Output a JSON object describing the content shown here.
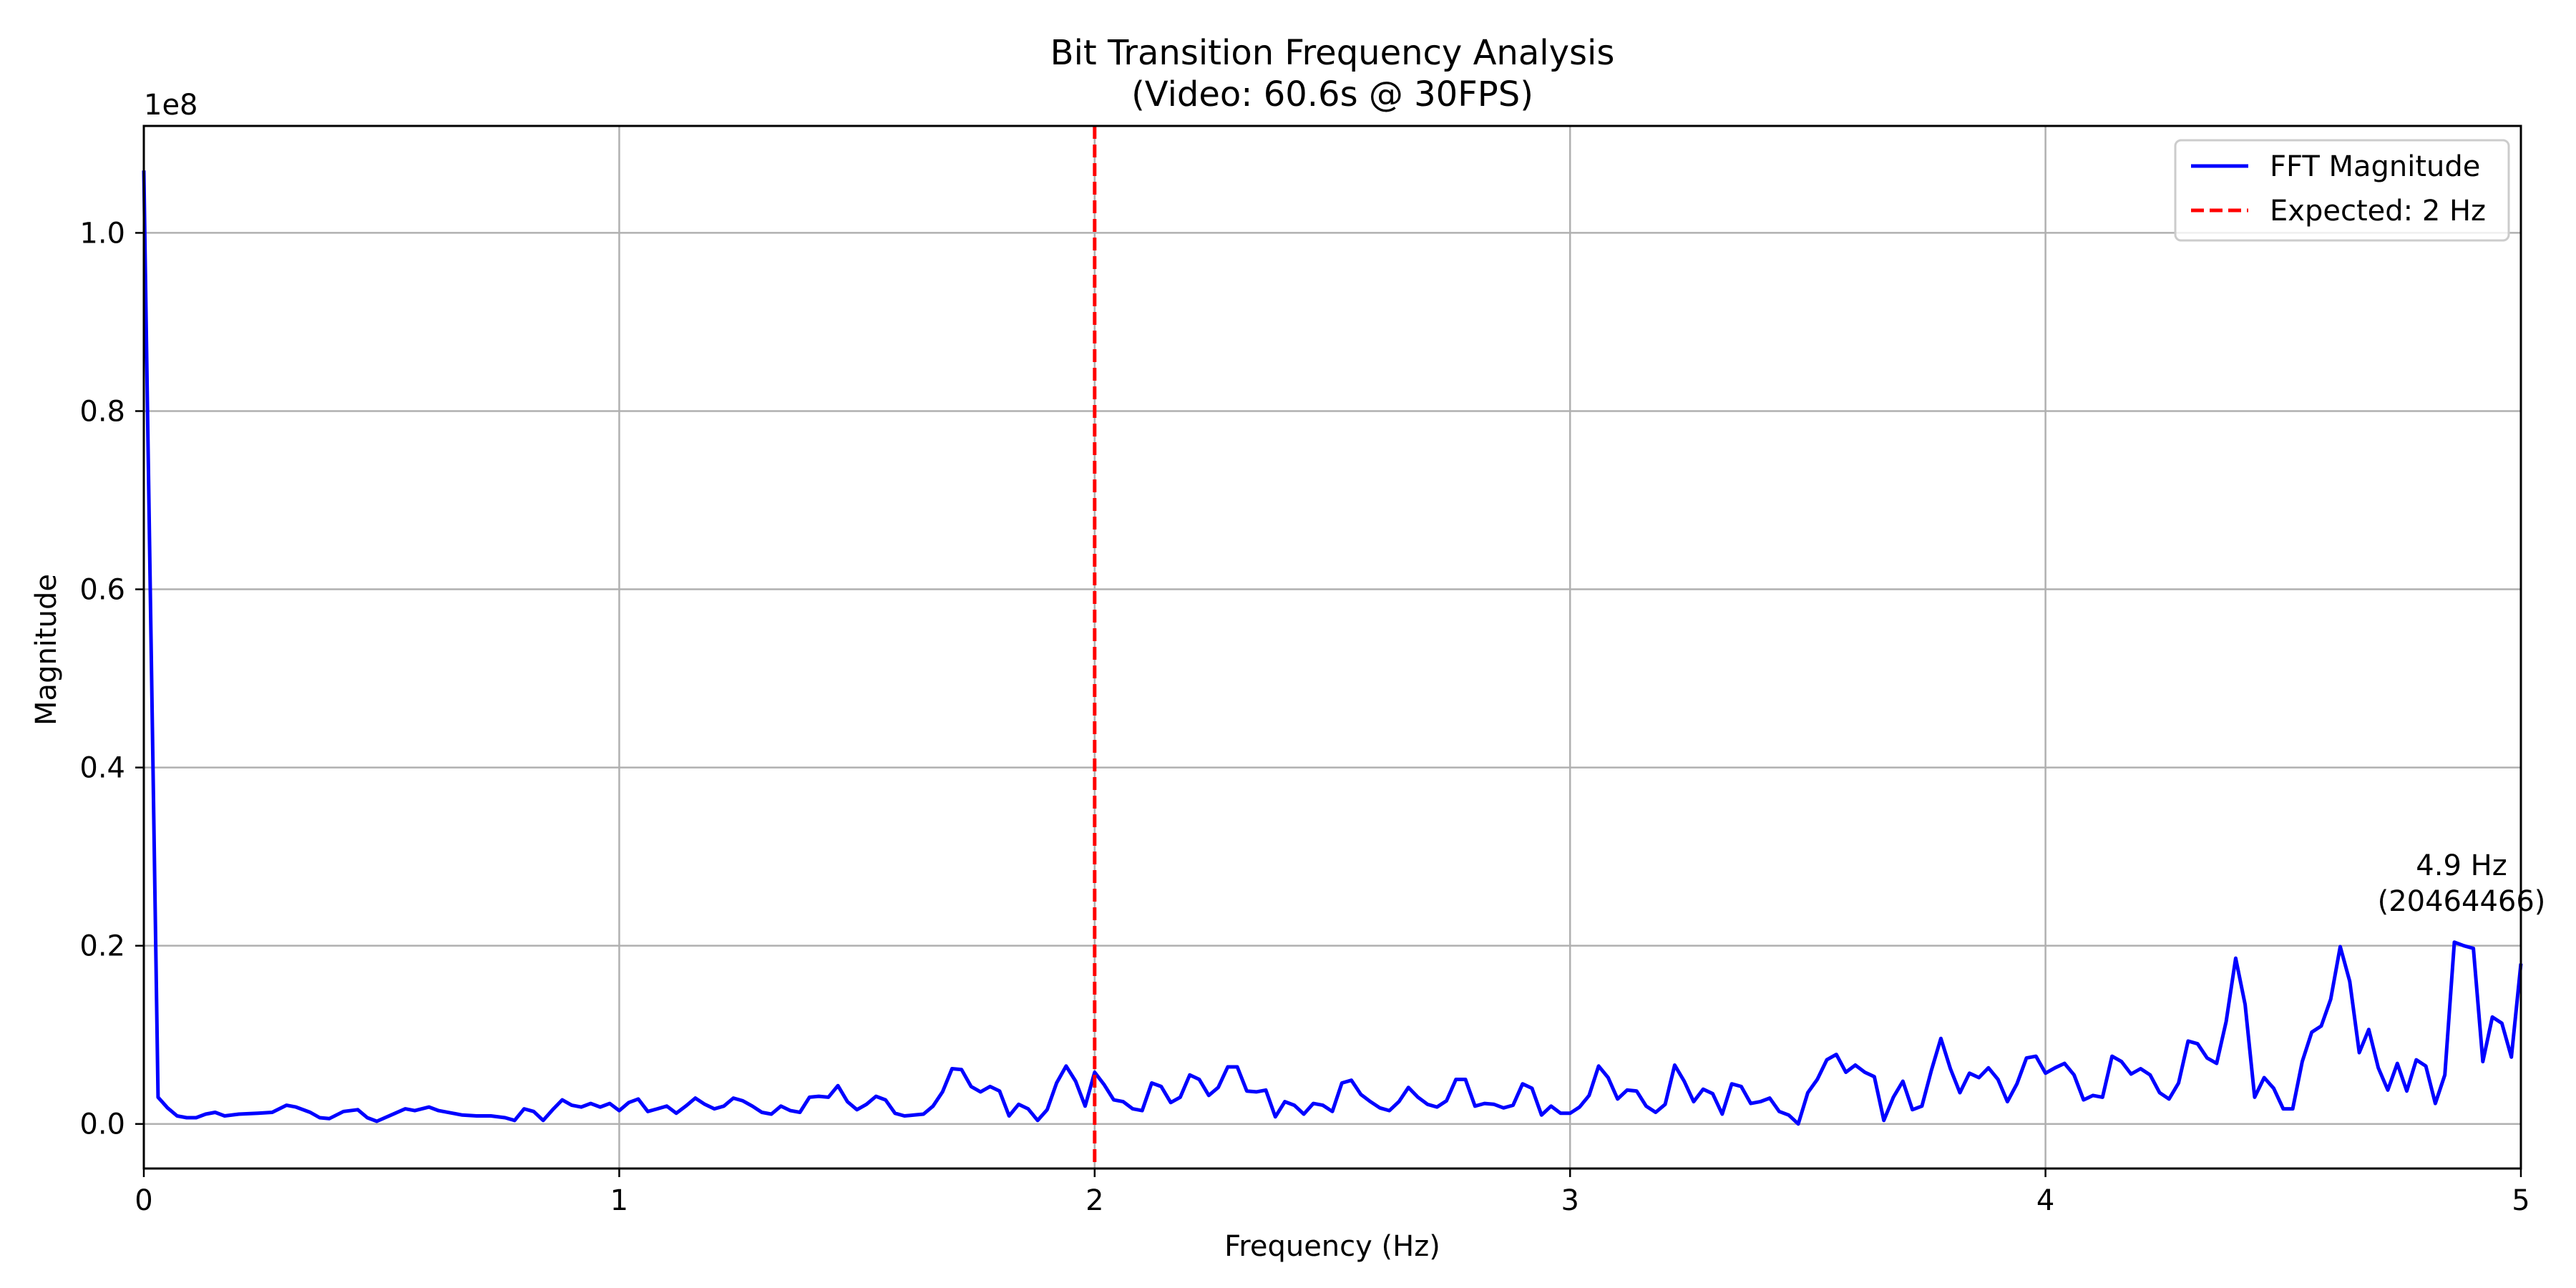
{
  "chart_data": {
    "type": "line",
    "title": [
      "Bit Transition Frequency Analysis",
      "(Video: 60.6s @ 30FPS)"
    ],
    "xlabel": "Frequency (Hz)",
    "ylabel": "Magnitude",
    "offset_text": "1e8",
    "xlim": [
      0,
      5
    ],
    "ylim": [
      -0.05,
      1.12
    ],
    "grid": true,
    "legend_position": "top-right",
    "x_ticks": [
      {
        "value": 0,
        "label": "0"
      },
      {
        "value": 1,
        "label": "1"
      },
      {
        "value": 2,
        "label": "2"
      },
      {
        "value": 3,
        "label": "3"
      },
      {
        "value": 4,
        "label": "4"
      },
      {
        "value": 5,
        "label": "5"
      }
    ],
    "y_ticks": [
      {
        "value": 0.0,
        "label": "0.0"
      },
      {
        "value": 0.2,
        "label": "0.2"
      },
      {
        "value": 0.4,
        "label": "0.4"
      },
      {
        "value": 0.6,
        "label": "0.6"
      },
      {
        "value": 0.8,
        "label": "0.8"
      },
      {
        "value": 1.0,
        "label": "1.0"
      }
    ],
    "series": [
      {
        "name": "FFT Magnitude",
        "color": "#0000ff",
        "style": "solid",
        "points": [
          [
            0.0,
            1.07
          ],
          [
            0.03,
            0.03
          ],
          [
            0.05,
            0.018
          ],
          [
            0.07,
            0.009
          ],
          [
            0.09,
            0.007
          ],
          [
            0.11,
            0.007
          ],
          [
            0.13,
            0.011
          ],
          [
            0.15,
            0.013
          ],
          [
            0.17,
            0.009
          ],
          [
            0.2,
            0.011
          ],
          [
            0.24,
            0.012
          ],
          [
            0.27,
            0.013
          ],
          [
            0.3,
            0.021
          ],
          [
            0.32,
            0.019
          ],
          [
            0.35,
            0.013
          ],
          [
            0.37,
            0.007
          ],
          [
            0.39,
            0.006
          ],
          [
            0.42,
            0.014
          ],
          [
            0.45,
            0.016
          ],
          [
            0.47,
            0.007
          ],
          [
            0.49,
            0.003
          ],
          [
            0.52,
            0.01
          ],
          [
            0.55,
            0.017
          ],
          [
            0.57,
            0.015
          ],
          [
            0.6,
            0.019
          ],
          [
            0.62,
            0.015
          ],
          [
            0.65,
            0.012
          ],
          [
            0.67,
            0.01
          ],
          [
            0.7,
            0.009
          ],
          [
            0.73,
            0.009
          ],
          [
            0.76,
            0.007
          ],
          [
            0.78,
            0.004
          ],
          [
            0.8,
            0.017
          ],
          [
            0.82,
            0.014
          ],
          [
            0.84,
            0.004
          ],
          [
            0.86,
            0.016
          ],
          [
            0.88,
            0.027
          ],
          [
            0.9,
            0.021
          ],
          [
            0.92,
            0.019
          ],
          [
            0.94,
            0.023
          ],
          [
            0.96,
            0.019
          ],
          [
            0.98,
            0.023
          ],
          [
            1.0,
            0.015
          ],
          [
            1.02,
            0.024
          ],
          [
            1.04,
            0.028
          ],
          [
            1.06,
            0.014
          ],
          [
            1.08,
            0.017
          ],
          [
            1.1,
            0.02
          ],
          [
            1.12,
            0.012
          ],
          [
            1.14,
            0.02
          ],
          [
            1.16,
            0.029
          ],
          [
            1.18,
            0.022
          ],
          [
            1.2,
            0.017
          ],
          [
            1.22,
            0.02
          ],
          [
            1.24,
            0.029
          ],
          [
            1.26,
            0.026
          ],
          [
            1.28,
            0.02
          ],
          [
            1.3,
            0.013
          ],
          [
            1.32,
            0.011
          ],
          [
            1.34,
            0.02
          ],
          [
            1.36,
            0.015
          ],
          [
            1.38,
            0.013
          ],
          [
            1.4,
            0.03
          ],
          [
            1.42,
            0.031
          ],
          [
            1.44,
            0.03
          ],
          [
            1.46,
            0.043
          ],
          [
            1.48,
            0.025
          ],
          [
            1.5,
            0.016
          ],
          [
            1.52,
            0.022
          ],
          [
            1.54,
            0.031
          ],
          [
            1.56,
            0.027
          ],
          [
            1.58,
            0.012
          ],
          [
            1.6,
            0.009
          ],
          [
            1.62,
            0.01
          ],
          [
            1.64,
            0.011
          ],
          [
            1.66,
            0.02
          ],
          [
            1.68,
            0.036
          ],
          [
            1.7,
            0.062
          ],
          [
            1.72,
            0.061
          ],
          [
            1.74,
            0.042
          ],
          [
            1.76,
            0.036
          ],
          [
            1.78,
            0.042
          ],
          [
            1.8,
            0.037
          ],
          [
            1.82,
            0.009
          ],
          [
            1.84,
            0.022
          ],
          [
            1.86,
            0.017
          ],
          [
            1.88,
            0.004
          ],
          [
            1.9,
            0.016
          ],
          [
            1.92,
            0.046
          ],
          [
            1.94,
            0.065
          ],
          [
            1.96,
            0.048
          ],
          [
            1.98,
            0.02
          ],
          [
            2.0,
            0.058
          ],
          [
            2.02,
            0.044
          ],
          [
            2.04,
            0.027
          ],
          [
            2.06,
            0.025
          ],
          [
            2.08,
            0.017
          ],
          [
            2.1,
            0.015
          ],
          [
            2.12,
            0.046
          ],
          [
            2.14,
            0.042
          ],
          [
            2.16,
            0.024
          ],
          [
            2.18,
            0.03
          ],
          [
            2.2,
            0.055
          ],
          [
            2.22,
            0.05
          ],
          [
            2.24,
            0.032
          ],
          [
            2.26,
            0.041
          ],
          [
            2.28,
            0.064
          ],
          [
            2.3,
            0.064
          ],
          [
            2.32,
            0.037
          ],
          [
            2.34,
            0.036
          ],
          [
            2.36,
            0.038
          ],
          [
            2.38,
            0.008
          ],
          [
            2.4,
            0.025
          ],
          [
            2.42,
            0.021
          ],
          [
            2.44,
            0.011
          ],
          [
            2.46,
            0.023
          ],
          [
            2.48,
            0.021
          ],
          [
            2.5,
            0.014
          ],
          [
            2.52,
            0.046
          ],
          [
            2.54,
            0.049
          ],
          [
            2.56,
            0.033
          ],
          [
            2.58,
            0.025
          ],
          [
            2.6,
            0.018
          ],
          [
            2.62,
            0.015
          ],
          [
            2.64,
            0.025
          ],
          [
            2.66,
            0.041
          ],
          [
            2.68,
            0.03
          ],
          [
            2.7,
            0.022
          ],
          [
            2.72,
            0.019
          ],
          [
            2.74,
            0.026
          ],
          [
            2.76,
            0.05
          ],
          [
            2.78,
            0.05
          ],
          [
            2.8,
            0.02
          ],
          [
            2.82,
            0.023
          ],
          [
            2.84,
            0.022
          ],
          [
            2.86,
            0.018
          ],
          [
            2.88,
            0.021
          ],
          [
            2.9,
            0.045
          ],
          [
            2.92,
            0.04
          ],
          [
            2.94,
            0.01
          ],
          [
            2.96,
            0.02
          ],
          [
            2.98,
            0.012
          ],
          [
            3.0,
            0.012
          ],
          [
            3.02,
            0.019
          ],
          [
            3.04,
            0.032
          ],
          [
            3.06,
            0.065
          ],
          [
            3.08,
            0.052
          ],
          [
            3.1,
            0.028
          ],
          [
            3.12,
            0.038
          ],
          [
            3.14,
            0.037
          ],
          [
            3.16,
            0.02
          ],
          [
            3.18,
            0.013
          ],
          [
            3.2,
            0.022
          ],
          [
            3.22,
            0.066
          ],
          [
            3.24,
            0.048
          ],
          [
            3.26,
            0.025
          ],
          [
            3.28,
            0.039
          ],
          [
            3.3,
            0.034
          ],
          [
            3.32,
            0.011
          ],
          [
            3.34,
            0.045
          ],
          [
            3.36,
            0.042
          ],
          [
            3.38,
            0.023
          ],
          [
            3.4,
            0.025
          ],
          [
            3.42,
            0.029
          ],
          [
            3.44,
            0.014
          ],
          [
            3.46,
            0.01
          ],
          [
            3.48,
            0.0
          ],
          [
            3.5,
            0.035
          ],
          [
            3.52,
            0.05
          ],
          [
            3.54,
            0.072
          ],
          [
            3.56,
            0.078
          ],
          [
            3.58,
            0.058
          ],
          [
            3.6,
            0.066
          ],
          [
            3.62,
            0.058
          ],
          [
            3.64,
            0.053
          ],
          [
            3.66,
            0.004
          ],
          [
            3.68,
            0.03
          ],
          [
            3.7,
            0.048
          ],
          [
            3.72,
            0.016
          ],
          [
            3.74,
            0.02
          ],
          [
            3.76,
            0.06
          ],
          [
            3.78,
            0.096
          ],
          [
            3.8,
            0.062
          ],
          [
            3.82,
            0.035
          ],
          [
            3.84,
            0.057
          ],
          [
            3.86,
            0.052
          ],
          [
            3.88,
            0.063
          ],
          [
            3.9,
            0.05
          ],
          [
            3.92,
            0.025
          ],
          [
            3.94,
            0.045
          ],
          [
            3.96,
            0.074
          ],
          [
            3.98,
            0.076
          ],
          [
            4.0,
            0.057
          ],
          [
            4.02,
            0.063
          ],
          [
            4.04,
            0.068
          ],
          [
            4.06,
            0.055
          ],
          [
            4.08,
            0.027
          ],
          [
            4.1,
            0.032
          ],
          [
            4.12,
            0.03
          ],
          [
            4.14,
            0.076
          ],
          [
            4.16,
            0.07
          ],
          [
            4.18,
            0.056
          ],
          [
            4.2,
            0.062
          ],
          [
            4.22,
            0.055
          ],
          [
            4.24,
            0.035
          ],
          [
            4.26,
            0.028
          ],
          [
            4.28,
            0.046
          ],
          [
            4.3,
            0.093
          ],
          [
            4.32,
            0.09
          ],
          [
            4.34,
            0.074
          ],
          [
            4.36,
            0.068
          ],
          [
            4.38,
            0.115
          ],
          [
            4.4,
            0.186
          ],
          [
            4.42,
            0.134
          ],
          [
            4.44,
            0.03
          ],
          [
            4.46,
            0.052
          ],
          [
            4.48,
            0.04
          ],
          [
            4.5,
            0.017
          ],
          [
            4.52,
            0.017
          ],
          [
            4.54,
            0.07
          ],
          [
            4.56,
            0.103
          ],
          [
            4.58,
            0.11
          ],
          [
            4.6,
            0.14
          ],
          [
            4.62,
            0.199
          ],
          [
            4.64,
            0.16
          ],
          [
            4.66,
            0.08
          ],
          [
            4.68,
            0.106
          ],
          [
            4.7,
            0.063
          ],
          [
            4.72,
            0.038
          ],
          [
            4.74,
            0.068
          ],
          [
            4.76,
            0.037
          ],
          [
            4.78,
            0.072
          ],
          [
            4.8,
            0.065
          ],
          [
            4.82,
            0.023
          ],
          [
            4.84,
            0.055
          ],
          [
            4.86,
            0.204
          ],
          [
            4.88,
            0.2
          ],
          [
            4.9,
            0.197
          ],
          [
            4.92,
            0.07
          ],
          [
            4.94,
            0.12
          ],
          [
            4.96,
            0.113
          ],
          [
            4.98,
            0.075
          ],
          [
            5.0,
            0.18
          ]
        ]
      },
      {
        "name": "Expected: 2 Hz",
        "color": "#ff0000",
        "style": "dashed",
        "x": 2
      }
    ],
    "annotation": {
      "x": 4.86,
      "y": 0.2046,
      "lines": [
        "4.9 Hz",
        "(20464466)"
      ],
      "color": "#006400"
    }
  }
}
